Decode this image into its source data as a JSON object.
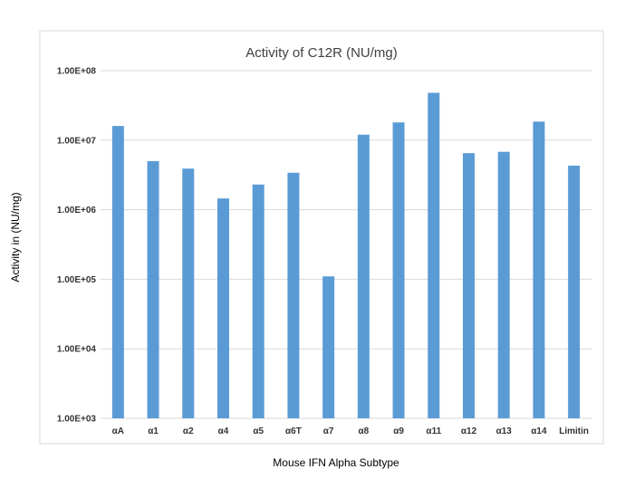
{
  "chart_data": {
    "type": "bar",
    "title": "Activity of C12R (NU/mg)",
    "xlabel": "Mouse IFN Alpha Subtype",
    "ylabel": "Activity in (NU/mg)",
    "yscale": "log",
    "ylim": [
      1000,
      100000000
    ],
    "yticks": [
      1000,
      10000,
      100000,
      1000000,
      10000000,
      100000000
    ],
    "ytick_labels": [
      "1.00E+03",
      "1.00E+04",
      "1.00E+05",
      "1.00E+06",
      "1.00E+07",
      "1.00E+08"
    ],
    "grid": true,
    "legend": "none",
    "color": "#5b9bd5",
    "categories": [
      "αA",
      "α1",
      "α2",
      "α4",
      "α5",
      "α6T",
      "α7",
      "α8",
      "α9",
      "α11",
      "α12",
      "α13",
      "α14",
      "Limitin"
    ],
    "values": [
      16000000,
      5000000,
      3900000,
      1450000,
      2300000,
      3400000,
      110000,
      12000000,
      18000000,
      48000000,
      6500000,
      6800000,
      18500000,
      4300000
    ]
  }
}
